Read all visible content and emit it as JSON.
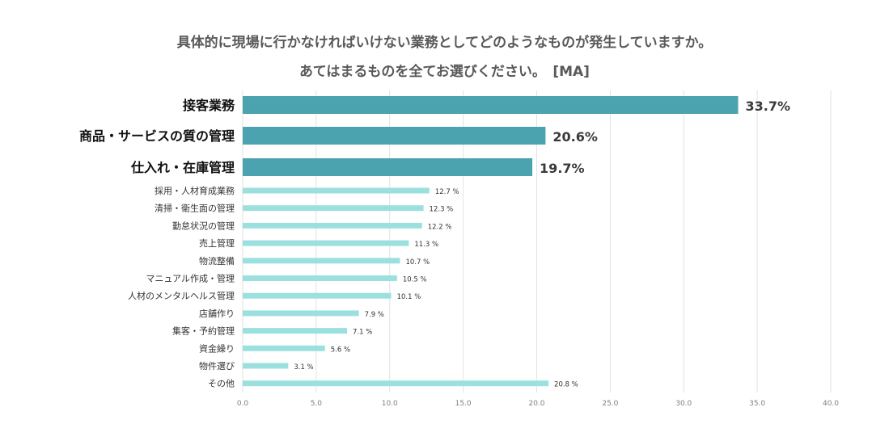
{
  "title_line1": "具体的に現場に行かなければいけない業務としてどのようなものが発生していますか。",
  "title_line2": "あてはまるものを全てお選びください。　[MA]",
  "chart_data": {
    "type": "bar",
    "orientation": "horizontal",
    "title": "具体的に現場に行かなければいけない業務としてどのようなものが発生していますか。 あてはまるものを全てお選びください。　[MA]",
    "xlabel": "",
    "ylabel": "",
    "xlim": [
      0,
      40
    ],
    "x_ticks": [
      "0.0",
      "5.0",
      "10.0",
      "15.0",
      "20.0",
      "25.0",
      "30.0",
      "35.0",
      "40.0"
    ],
    "grid": true,
    "categories": [
      "接客業務",
      "商品・サービスの質の管理",
      "仕入れ・在庫管理",
      "採用・人材育成業務",
      "清掃・衛生面の管理",
      "勤怠状況の管理",
      "売上管理",
      "物流整備",
      "マニュアル作成・管理",
      "人材のメンタルヘルス管理",
      "店舗作り",
      "集客・予約管理",
      "資金繰り",
      "物件選び",
      "その他"
    ],
    "values": [
      33.7,
      20.6,
      19.7,
      12.7,
      12.3,
      12.2,
      11.3,
      10.7,
      10.5,
      10.1,
      7.9,
      7.1,
      5.6,
      3.1,
      20.8
    ],
    "labels": [
      "33.7%",
      "20.6%",
      "19.7%",
      "12.7 %",
      "12.3 %",
      "12.2 %",
      "11.3 %",
      "10.7 %",
      "10.5 %",
      "10.1 %",
      "7.9 %",
      "7.1 %",
      "5.6 %",
      "3.1 %",
      "20.8 %"
    ],
    "colors": {
      "highlight": "#4aa3ae",
      "normal": "#9be0df",
      "grid": "#e2e2e2",
      "text": "#333333",
      "axis_text": "#7f7f7f"
    }
  }
}
